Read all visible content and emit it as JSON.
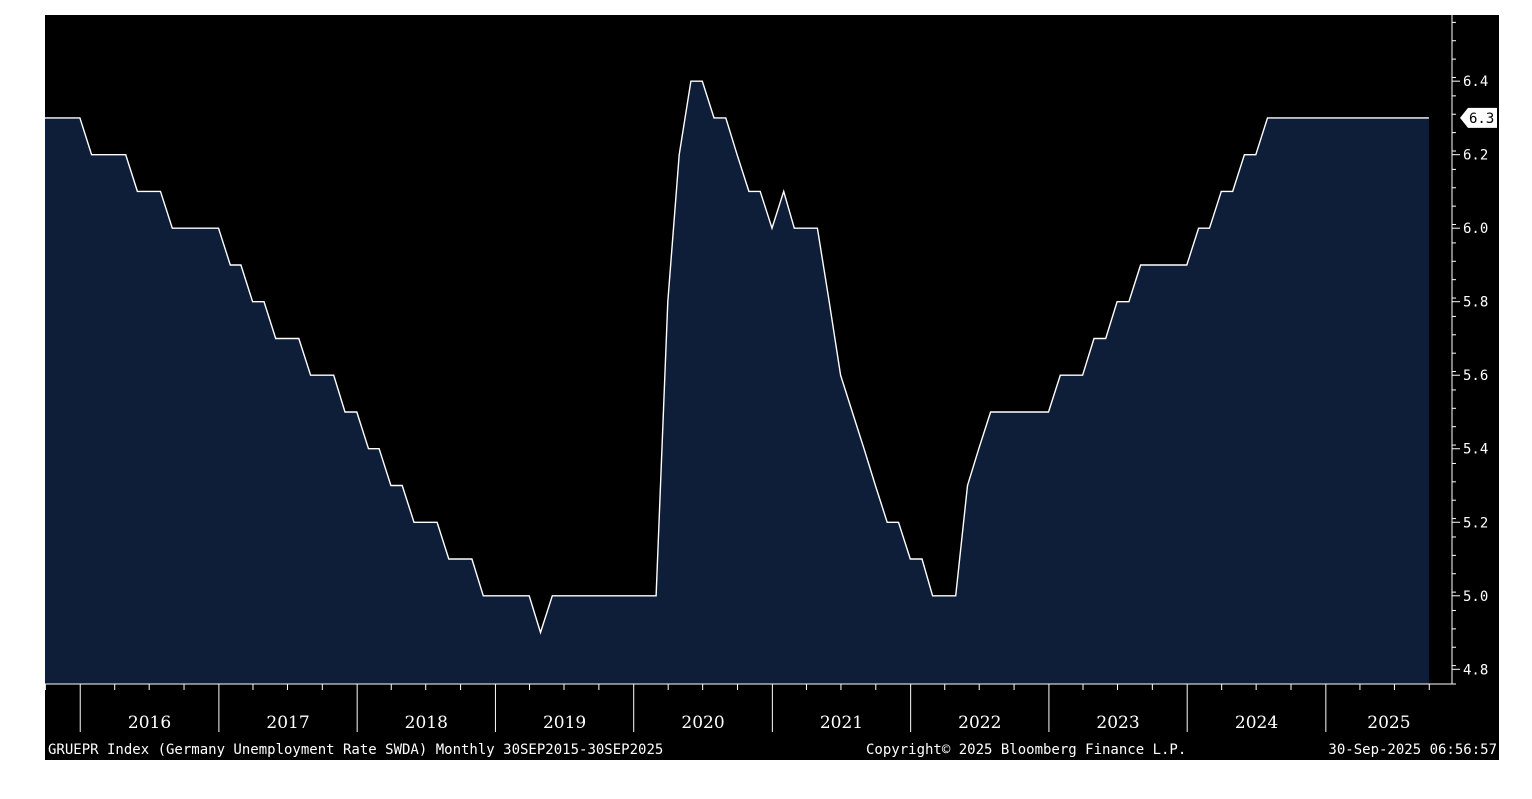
{
  "chart_data": {
    "type": "area",
    "y_ticks": [
      4.8,
      5.0,
      5.2,
      5.4,
      5.6,
      5.8,
      6.0,
      6.2,
      6.4
    ],
    "ylim": [
      4.76,
      6.58
    ],
    "xlim": [
      "2015-09-30",
      "2025-11-30"
    ],
    "x_labels": [
      "2016",
      "2017",
      "2018",
      "2019",
      "2020",
      "2021",
      "2022",
      "2023",
      "2024",
      "2025"
    ],
    "last_value_label": "6.3",
    "grid": false,
    "colors": {
      "background": "#000000",
      "area_fill": "#0e1e38",
      "line": "#ffffff",
      "axis_text": "#ffffff"
    },
    "series": [
      {
        "points": [
          [
            "2015-09-30",
            6.3
          ],
          [
            "2015-12-31",
            6.3
          ],
          [
            "2016-01-31",
            6.2
          ],
          [
            "2016-04-30",
            6.2
          ],
          [
            "2016-05-31",
            6.1
          ],
          [
            "2016-07-31",
            6.1
          ],
          [
            "2016-08-31",
            6.0
          ],
          [
            "2016-12-31",
            6.0
          ],
          [
            "2017-01-31",
            5.9
          ],
          [
            "2017-02-28",
            5.9
          ],
          [
            "2017-03-31",
            5.8
          ],
          [
            "2017-04-30",
            5.8
          ],
          [
            "2017-05-31",
            5.7
          ],
          [
            "2017-07-31",
            5.7
          ],
          [
            "2017-08-31",
            5.6
          ],
          [
            "2017-10-31",
            5.6
          ],
          [
            "2017-11-30",
            5.5
          ],
          [
            "2017-12-31",
            5.5
          ],
          [
            "2018-01-31",
            5.4
          ],
          [
            "2018-02-28",
            5.4
          ],
          [
            "2018-03-31",
            5.3
          ],
          [
            "2018-04-30",
            5.3
          ],
          [
            "2018-05-31",
            5.2
          ],
          [
            "2018-07-31",
            5.2
          ],
          [
            "2018-08-31",
            5.1
          ],
          [
            "2018-10-31",
            5.1
          ],
          [
            "2018-11-30",
            5.0
          ],
          [
            "2019-03-31",
            5.0
          ],
          [
            "2019-04-30",
            4.9
          ],
          [
            "2019-05-31",
            5.0
          ],
          [
            "2020-02-29",
            5.0
          ],
          [
            "2020-03-31",
            5.8
          ],
          [
            "2020-04-30",
            6.2
          ],
          [
            "2020-05-31",
            6.4
          ],
          [
            "2020-06-30",
            6.4
          ],
          [
            "2020-07-31",
            6.3
          ],
          [
            "2020-08-31",
            6.3
          ],
          [
            "2020-09-30",
            6.2
          ],
          [
            "2020-10-31",
            6.1
          ],
          [
            "2020-11-30",
            6.1
          ],
          [
            "2020-12-31",
            6.0
          ],
          [
            "2021-01-31",
            6.1
          ],
          [
            "2021-02-28",
            6.0
          ],
          [
            "2021-04-30",
            6.0
          ],
          [
            "2021-05-31",
            5.8
          ],
          [
            "2021-06-30",
            5.6
          ],
          [
            "2021-07-31",
            5.5
          ],
          [
            "2021-08-31",
            5.4
          ],
          [
            "2021-09-30",
            5.3
          ],
          [
            "2021-10-31",
            5.2
          ],
          [
            "2021-11-30",
            5.2
          ],
          [
            "2021-12-31",
            5.1
          ],
          [
            "2022-01-31",
            5.1
          ],
          [
            "2022-02-28",
            5.0
          ],
          [
            "2022-04-30",
            5.0
          ],
          [
            "2022-05-31",
            5.3
          ],
          [
            "2022-06-30",
            5.4
          ],
          [
            "2022-07-31",
            5.5
          ],
          [
            "2022-12-31",
            5.5
          ],
          [
            "2023-01-31",
            5.6
          ],
          [
            "2023-03-31",
            5.6
          ],
          [
            "2023-04-30",
            5.7
          ],
          [
            "2023-05-31",
            5.7
          ],
          [
            "2023-06-30",
            5.8
          ],
          [
            "2023-07-31",
            5.8
          ],
          [
            "2023-08-31",
            5.9
          ],
          [
            "2023-12-31",
            5.9
          ],
          [
            "2024-01-31",
            6.0
          ],
          [
            "2024-02-29",
            6.0
          ],
          [
            "2024-03-31",
            6.1
          ],
          [
            "2024-04-30",
            6.1
          ],
          [
            "2024-05-31",
            6.2
          ],
          [
            "2024-06-30",
            6.2
          ],
          [
            "2024-07-31",
            6.3
          ],
          [
            "2025-09-30",
            6.3
          ]
        ]
      }
    ]
  },
  "footer": {
    "source": "GRUEPR Index (Germany Unemployment Rate SWDA) Monthly 30SEP2015-30SEP2025",
    "copyright": "Copyright© 2025 Bloomberg Finance L.P.",
    "timestamp": "30-Sep-2025 06:56:57"
  }
}
